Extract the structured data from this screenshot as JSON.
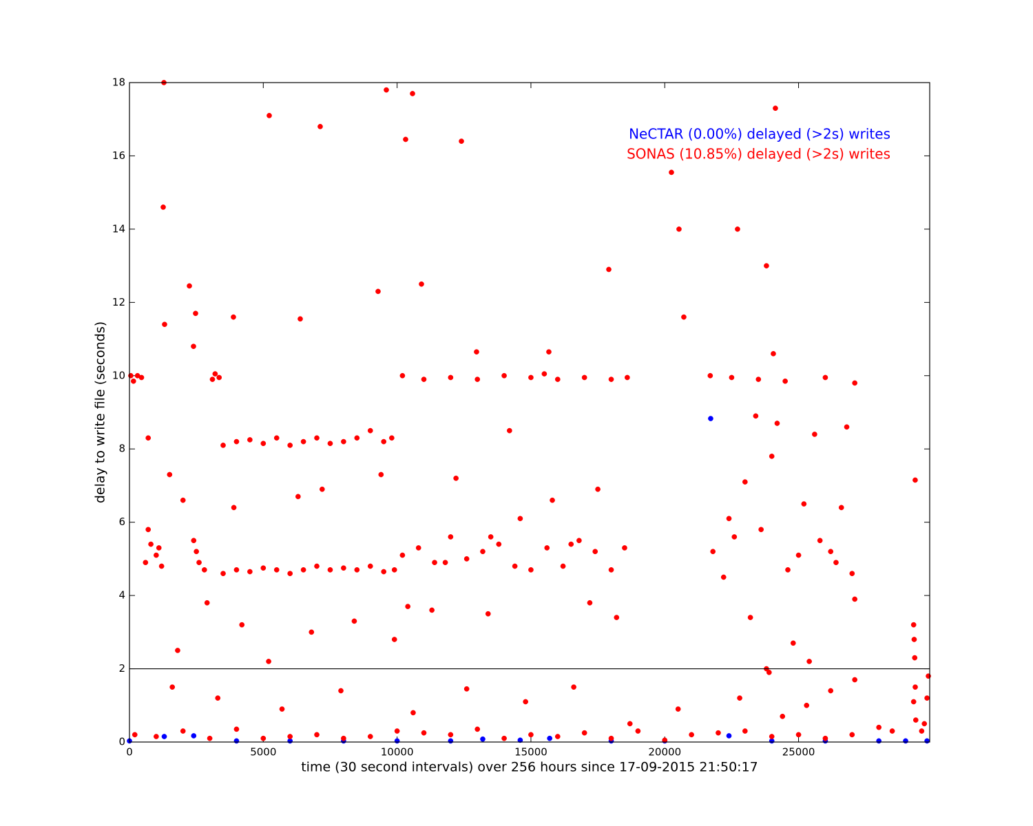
{
  "chart_data": {
    "type": "scatter",
    "x_label": "time (30 second intervals) over 256 hours since 17-09-2015 21:50:17",
    "y_label": "delay to write file (seconds)",
    "xlim": [
      0,
      29900
    ],
    "ylim": [
      0,
      18
    ],
    "xticks": [
      0,
      5000,
      10000,
      15000,
      20000,
      25000
    ],
    "yticks": [
      0,
      2,
      4,
      6,
      8,
      10,
      12,
      14,
      16,
      18
    ],
    "hline": 2,
    "grid": false,
    "legend": "upper right",
    "series": [
      {
        "name": "NeCTAR (0.00%) delayed (>2s) writes",
        "color": "#0000ff",
        "x": [
          0,
          1300,
          2400,
          4000,
          6000,
          8000,
          10000,
          12000,
          13200,
          14600,
          15700,
          18000,
          20000,
          21716,
          22400,
          24000,
          26000,
          28000,
          29000,
          29800
        ],
        "values": [
          0.03,
          0.15,
          0.17,
          0.03,
          0.03,
          0.03,
          0.03,
          0.03,
          0.08,
          0.05,
          0.1,
          0.03,
          0.03,
          8.83,
          0.17,
          0.03,
          0.03,
          0.03,
          0.03,
          0.03
        ]
      },
      {
        "name": "SONAS (10.85%) delayed (>2s) writes",
        "color": "#ff0000",
        "x": [
          1261,
          1287,
          5223,
          7127,
          9598,
          10576,
          10318,
          12403,
          24135,
          20250,
          20533,
          22720,
          23800,
          17910,
          2239,
          10910,
          9289,
          2470,
          3885,
          6381,
          20713,
          1312,
          2393,
          12968,
          15670,
          24058,
          29358,
          50,
          150,
          300,
          450,
          3100,
          3200,
          3350,
          10200,
          11000,
          12000,
          13000,
          14000,
          15000,
          15500,
          16000,
          17000,
          18000,
          18600,
          21700,
          22500,
          23500,
          24500,
          26000,
          27100,
          3500,
          4000,
          4500,
          5000,
          5500,
          6000,
          6500,
          7000,
          7500,
          8000,
          8500,
          9000,
          9500,
          9800,
          3500,
          4000,
          4500,
          5000,
          5500,
          6000,
          6500,
          7000,
          7500,
          8000,
          8500,
          9000,
          9500,
          9900,
          10200,
          10800,
          11400,
          12000,
          12600,
          13200,
          13800,
          14400,
          15000,
          15600,
          16200,
          16800,
          17400,
          18000,
          18500,
          11800,
          13500,
          16500,
          600,
          800,
          1000,
          1200,
          2400,
          2600,
          2800,
          700,
          1100,
          2500,
          700,
          1500,
          2000,
          2900,
          4200,
          5200,
          6300,
          7200,
          8400,
          9400,
          10400,
          11300,
          12200,
          13400,
          14600,
          15800,
          17200,
          18200,
          1800,
          3900,
          6800,
          9900,
          14200,
          17500,
          21800,
          22200,
          22600,
          23000,
          23400,
          23800,
          24200,
          24600,
          25000,
          25400,
          25800,
          26200,
          26600,
          27000,
          22400,
          23200,
          24000,
          24800,
          25600,
          26400,
          27100,
          23600,
          25200,
          26800,
          200,
          1000,
          2000,
          3000,
          4000,
          5000,
          6000,
          7000,
          8000,
          9000,
          10000,
          11000,
          12000,
          13000,
          14000,
          15000,
          16000,
          17000,
          18000,
          19000,
          20000,
          21000,
          22000,
          23000,
          24000,
          25000,
          26000,
          27000,
          28000,
          28500,
          1600,
          3300,
          5700,
          7900,
          10600,
          12600,
          14800,
          16600,
          18700,
          20500,
          22800,
          23900,
          24400,
          26200,
          27100,
          25300,
          29300,
          29320,
          29340,
          29360,
          29300,
          29380,
          29700,
          29800,
          29850,
          29600
        ],
        "values": [
          14.6,
          18.0,
          17.1,
          16.8,
          17.8,
          17.7,
          16.45,
          16.4,
          17.3,
          15.55,
          14.0,
          14.0,
          13.0,
          12.9,
          12.45,
          12.5,
          12.3,
          11.7,
          11.6,
          11.55,
          11.6,
          11.4,
          10.8,
          10.65,
          10.65,
          10.6,
          7.15,
          10.0,
          9.85,
          10.0,
          9.95,
          9.9,
          10.05,
          9.95,
          10.0,
          9.9,
          9.95,
          9.9,
          10.0,
          9.95,
          10.05,
          9.9,
          9.95,
          9.9,
          9.95,
          10.0,
          9.95,
          9.9,
          9.85,
          9.95,
          9.8,
          8.1,
          8.2,
          8.25,
          8.15,
          8.3,
          8.1,
          8.2,
          8.3,
          8.15,
          8.2,
          8.3,
          8.5,
          8.2,
          8.3,
          4.6,
          4.7,
          4.65,
          4.75,
          4.7,
          4.6,
          4.7,
          4.8,
          4.7,
          4.75,
          4.7,
          4.8,
          4.65,
          4.7,
          5.1,
          5.3,
          4.9,
          5.6,
          5.0,
          5.2,
          5.4,
          4.8,
          4.7,
          5.3,
          4.8,
          5.5,
          5.2,
          4.7,
          5.3,
          4.9,
          5.6,
          5.4,
          4.9,
          5.4,
          5.1,
          4.8,
          5.5,
          4.9,
          4.7,
          5.8,
          5.3,
          5.2,
          8.3,
          7.3,
          6.6,
          3.8,
          3.2,
          2.2,
          6.7,
          6.9,
          3.3,
          7.3,
          3.7,
          3.6,
          7.2,
          3.5,
          6.1,
          6.6,
          3.8,
          3.4,
          2.5,
          6.4,
          3.0,
          2.8,
          8.5,
          6.9,
          5.2,
          4.5,
          5.6,
          7.1,
          8.9,
          2.0,
          8.7,
          4.7,
          5.1,
          2.2,
          5.5,
          5.2,
          6.4,
          4.6,
          6.1,
          3.4,
          7.8,
          2.7,
          8.4,
          4.9,
          3.9,
          5.8,
          6.5,
          8.6,
          0.2,
          0.15,
          0.3,
          0.1,
          0.35,
          0.1,
          0.15,
          0.2,
          0.1,
          0.15,
          0.3,
          0.25,
          0.2,
          0.35,
          0.1,
          0.2,
          0.15,
          0.25,
          0.1,
          0.3,
          0.05,
          0.2,
          0.25,
          0.3,
          0.15,
          0.2,
          0.1,
          0.2,
          0.4,
          0.3,
          1.5,
          1.2,
          0.9,
          1.4,
          0.8,
          1.45,
          1.1,
          1.5,
          0.5,
          0.9,
          1.2,
          1.9,
          0.7,
          1.4,
          1.7,
          1.0,
          3.2,
          2.8,
          2.3,
          1.5,
          1.1,
          0.6,
          0.5,
          1.2,
          1.8,
          0.3
        ]
      }
    ]
  }
}
